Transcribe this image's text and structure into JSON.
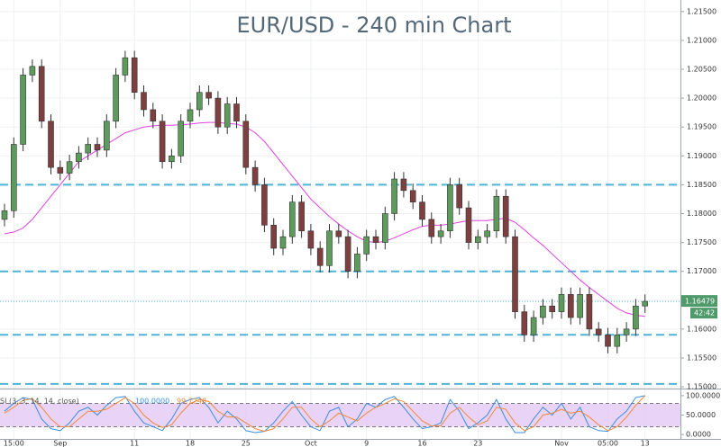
{
  "chart_data": {
    "type": "candlestick",
    "title": "EUR/USD - 240 min Chart",
    "categories": [
      null,
      "15:00",
      null,
      null,
      null,
      null,
      "Sep",
      null,
      null,
      null,
      null,
      null,
      null,
      null,
      "11",
      null,
      null,
      null,
      null,
      null,
      "18",
      null,
      null,
      null,
      null,
      null,
      "25",
      null,
      null,
      null,
      null,
      null,
      null,
      "Oct",
      null,
      null,
      null,
      null,
      null,
      "9",
      null,
      null,
      null,
      null,
      null,
      "16",
      null,
      null,
      null,
      null,
      null,
      "23",
      null,
      null,
      null,
      null,
      null,
      null,
      null,
      null,
      "Nov",
      null,
      null,
      null,
      null,
      "05:00",
      null,
      null,
      null,
      "13"
    ],
    "open": [
      1.179,
      1.1805,
      1.192,
      1.204,
      1.2055,
      1.196,
      1.188,
      1.187,
      1.189,
      1.1905,
      1.192,
      1.191,
      1.196,
      1.204,
      1.207,
      1.201,
      1.198,
      1.196,
      1.189,
      1.19,
      1.196,
      1.198,
      1.201,
      1.2,
      1.195,
      1.199,
      1.196,
      1.188,
      1.185,
      1.178,
      1.174,
      1.176,
      1.182,
      1.177,
      1.174,
      1.171,
      1.177,
      1.176,
      1.17,
      1.173,
      1.176,
      1.175,
      1.18,
      1.186,
      1.184,
      1.182,
      1.179,
      1.176,
      1.177,
      1.185,
      1.181,
      1.175,
      1.176,
      1.177,
      1.183,
      1.176,
      1.163,
      1.159,
      1.162,
      1.164,
      1.163,
      1.166,
      1.162,
      1.166,
      1.16,
      1.159,
      1.157,
      1.159,
      1.16,
      1.164
    ],
    "high": [
      1.1817,
      1.1932,
      1.2052,
      1.2067,
      1.2067,
      1.1972,
      1.1892,
      1.1902,
      1.1917,
      1.1932,
      1.1932,
      1.1972,
      1.2052,
      1.2082,
      1.2082,
      1.2022,
      1.1992,
      1.1972,
      1.1912,
      1.1972,
      1.1992,
      1.2022,
      1.2022,
      1.2012,
      1.2002,
      1.2002,
      1.1972,
      1.1892,
      1.1862,
      1.1792,
      1.1772,
      1.1832,
      1.1832,
      1.1782,
      1.1752,
      1.1782,
      1.1782,
      1.1772,
      1.1742,
      1.1772,
      1.1772,
      1.1812,
      1.1872,
      1.1872,
      1.1852,
      1.1832,
      1.1802,
      1.1782,
      1.1862,
      1.1862,
      1.1822,
      1.1772,
      1.1782,
      1.1842,
      1.1842,
      1.1772,
      1.1642,
      1.1632,
      1.1652,
      1.1652,
      1.1672,
      1.1672,
      1.1672,
      1.1672,
      1.1612,
      1.1602,
      1.1602,
      1.1612,
      1.1652,
      1.166
    ],
    "low": [
      1.1778,
      1.1793,
      1.1908,
      1.2028,
      1.1948,
      1.1868,
      1.1858,
      1.1858,
      1.1878,
      1.1893,
      1.1898,
      1.1898,
      1.1948,
      1.2028,
      1.1998,
      1.1968,
      1.1948,
      1.1878,
      1.1878,
      1.1888,
      1.1948,
      1.1968,
      1.1988,
      1.1938,
      1.1938,
      1.1948,
      1.1868,
      1.1838,
      1.1768,
      1.1728,
      1.1728,
      1.1748,
      1.1758,
      1.1728,
      1.1698,
      1.1698,
      1.1748,
      1.1688,
      1.1688,
      1.1718,
      1.1738,
      1.1738,
      1.1788,
      1.1828,
      1.1808,
      1.1778,
      1.1748,
      1.1748,
      1.1758,
      1.1798,
      1.1738,
      1.1738,
      1.1748,
      1.1758,
      1.1748,
      1.1618,
      1.1578,
      1.1578,
      1.1608,
      1.1618,
      1.1618,
      1.1608,
      1.1608,
      1.1588,
      1.1578,
      1.1558,
      1.1558,
      1.1578,
      1.1588,
      1.1628
    ],
    "close": [
      1.1805,
      1.192,
      1.204,
      1.2055,
      1.196,
      1.188,
      1.187,
      1.189,
      1.1905,
      1.192,
      1.191,
      1.196,
      1.204,
      1.207,
      1.201,
      1.198,
      1.196,
      1.189,
      1.19,
      1.196,
      1.198,
      1.201,
      1.2,
      1.195,
      1.199,
      1.196,
      1.188,
      1.185,
      1.178,
      1.174,
      1.176,
      1.182,
      1.177,
      1.174,
      1.171,
      1.177,
      1.176,
      1.17,
      1.173,
      1.176,
      1.175,
      1.18,
      1.186,
      1.184,
      1.182,
      1.179,
      1.176,
      1.177,
      1.185,
      1.181,
      1.175,
      1.176,
      1.177,
      1.183,
      1.176,
      1.163,
      1.159,
      1.162,
      1.164,
      1.163,
      1.166,
      1.162,
      1.166,
      1.16,
      1.159,
      1.157,
      1.159,
      1.16,
      1.164,
      1.1648
    ],
    "up_color": "#5c9b5c",
    "down_color": "#7d3f3f",
    "ma": {
      "color": "#e040e0",
      "values": [
        1.1765,
        1.1768,
        1.1775,
        1.179,
        1.181,
        1.183,
        1.185,
        1.187,
        1.189,
        1.19,
        1.191,
        1.192,
        1.193,
        1.194,
        1.1945,
        1.195,
        1.1952,
        1.1953,
        1.1953,
        1.1954,
        1.1955,
        1.1957,
        1.1958,
        1.1958,
        1.1956,
        1.1955,
        1.195,
        1.194,
        1.1925,
        1.1905,
        1.1885,
        1.1865,
        1.1845,
        1.1825,
        1.181,
        1.1795,
        1.1782,
        1.177,
        1.176,
        1.1752,
        1.175,
        1.1752,
        1.1758,
        1.1765,
        1.1772,
        1.1778,
        1.178,
        1.178,
        1.1782,
        1.1785,
        1.1788,
        1.1788,
        1.1788,
        1.179,
        1.1792,
        1.1785,
        1.1772,
        1.1758,
        1.1745,
        1.173,
        1.1715,
        1.17,
        1.1685,
        1.1672,
        1.166,
        1.1648,
        1.1636,
        1.1628,
        1.1624,
        1.1622
      ]
    },
    "levels": {
      "color": "#4fb3d9",
      "values": [
        1.185,
        1.17,
        1.159,
        1.1505
      ]
    },
    "last_price": {
      "value": 1.16479,
      "label": "1.16479",
      "color": "#4f9a6a"
    },
    "countdown": "42:42",
    "ylim": [
      1.1497,
      1.217
    ],
    "yticks": [
      {
        "value": 1.15,
        "label": "1.15000"
      },
      {
        "value": 1.155,
        "label": "1.15500"
      },
      {
        "value": 1.16,
        "label": "1.16000"
      },
      {
        "value": 1.165,
        "label": "1.16500"
      },
      {
        "value": 1.17,
        "label": "1.17000"
      },
      {
        "value": 1.175,
        "label": "1.17500"
      },
      {
        "value": 1.18,
        "label": "1.18000"
      },
      {
        "value": 1.185,
        "label": "1.18500"
      },
      {
        "value": 1.19,
        "label": "1.19000"
      },
      {
        "value": 1.195,
        "label": "1.19500"
      },
      {
        "value": 1.2,
        "label": "1.20000"
      },
      {
        "value": 1.205,
        "label": "1.20500"
      },
      {
        "value": 1.21,
        "label": "1.21000"
      },
      {
        "value": 1.215,
        "label": "1.21500"
      }
    ],
    "grid": true,
    "indicator": {
      "type": "line",
      "title": "SI (3, 3, 14, 14, close)",
      "series": [
        {
          "color": "#3c8fe0",
          "values": [
            60,
            80,
            95,
            90,
            40,
            15,
            10,
            30,
            60,
            70,
            50,
            75,
            95,
            98,
            60,
            30,
            20,
            10,
            40,
            80,
            90,
            95,
            70,
            30,
            60,
            40,
            10,
            5,
            8,
            30,
            60,
            85,
            50,
            20,
            10,
            60,
            70,
            20,
            40,
            80,
            70,
            90,
            98,
            70,
            40,
            15,
            20,
            30,
            90,
            60,
            15,
            30,
            50,
            90,
            40,
            5,
            5,
            40,
            70,
            50,
            80,
            40,
            70,
            20,
            10,
            8,
            40,
            60,
            95,
            100
          ],
          "value_labels": [
            null,
            null,
            null,
            null,
            null,
            null,
            null,
            null,
            null,
            null,
            null,
            null,
            null,
            null,
            null,
            null,
            null,
            null,
            null,
            null,
            null,
            null,
            null,
            null,
            null,
            null,
            null,
            null,
            null,
            null,
            null,
            null,
            null,
            null,
            null,
            null,
            null,
            null,
            null,
            null,
            null,
            null,
            null,
            null,
            null,
            null,
            null,
            null,
            null,
            null,
            null,
            null,
            null,
            null,
            null,
            null,
            null,
            null,
            null,
            null,
            null,
            null,
            null,
            null,
            null,
            null,
            null,
            null,
            null,
            "100.0000"
          ]
        },
        {
          "color": "#f08a3c",
          "values": [
            55,
            70,
            88,
            92,
            70,
            40,
            20,
            20,
            40,
            60,
            60,
            65,
            80,
            95,
            80,
            50,
            30,
            18,
            25,
            55,
            80,
            90,
            85,
            60,
            45,
            45,
            30,
            15,
            8,
            15,
            40,
            70,
            70,
            40,
            20,
            35,
            55,
            45,
            35,
            55,
            70,
            80,
            92,
            85,
            60,
            35,
            22,
            22,
            55,
            70,
            45,
            25,
            35,
            70,
            65,
            30,
            10,
            20,
            50,
            55,
            65,
            55,
            60,
            45,
            25,
            10,
            20,
            45,
            75,
            99.7248
          ],
          "value_labels": [
            null,
            null,
            null,
            null,
            null,
            null,
            null,
            null,
            null,
            null,
            null,
            null,
            null,
            null,
            null,
            null,
            null,
            null,
            null,
            null,
            null,
            null,
            null,
            null,
            null,
            null,
            null,
            null,
            null,
            null,
            null,
            null,
            null,
            null,
            null,
            null,
            null,
            null,
            null,
            null,
            null,
            null,
            null,
            null,
            null,
            null,
            null,
            null,
            null,
            null,
            null,
            null,
            null,
            null,
            null,
            null,
            null,
            null,
            null,
            null,
            null,
            null,
            null,
            null,
            null,
            null,
            null,
            null,
            null,
            "99.7248"
          ]
        }
      ],
      "ylim": [
        -9,
        116
      ],
      "yticks": [
        {
          "value": 0,
          "label": "0.0000"
        },
        {
          "value": 50,
          "label": "50.0000"
        },
        {
          "value": 100,
          "label": "100.0000"
        }
      ],
      "bands": [
        20,
        80
      ],
      "band_color": "#e3c8f5"
    }
  }
}
